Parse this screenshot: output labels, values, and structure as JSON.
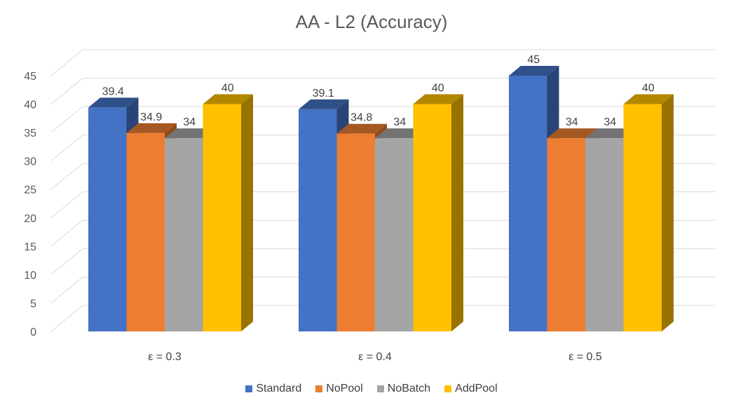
{
  "chart_data": {
    "type": "bar",
    "title": "AA - L2 (Accuracy)",
    "xlabel": "",
    "ylabel": "",
    "categories": [
      "ε = 0.3",
      "ε = 0.4",
      "ε = 0.5"
    ],
    "series": [
      {
        "name": "Standard",
        "values": [
          39.4,
          39.1,
          45
        ],
        "color": "#4472C4"
      },
      {
        "name": "NoPool",
        "values": [
          34.9,
          34.8,
          34
        ],
        "color": "#ED7D31"
      },
      {
        "name": "NoBatch",
        "values": [
          34,
          34,
          34
        ],
        "color": "#A5A5A5"
      },
      {
        "name": "AddPool",
        "values": [
          40,
          40,
          40
        ],
        "color": "#FFC000"
      }
    ],
    "ylim": [
      0,
      45
    ],
    "yticks": [
      0,
      5,
      10,
      15,
      20,
      25,
      30,
      35,
      40,
      45
    ],
    "grid": true,
    "legend_position": "bottom",
    "style": "3d-clustered-column"
  }
}
